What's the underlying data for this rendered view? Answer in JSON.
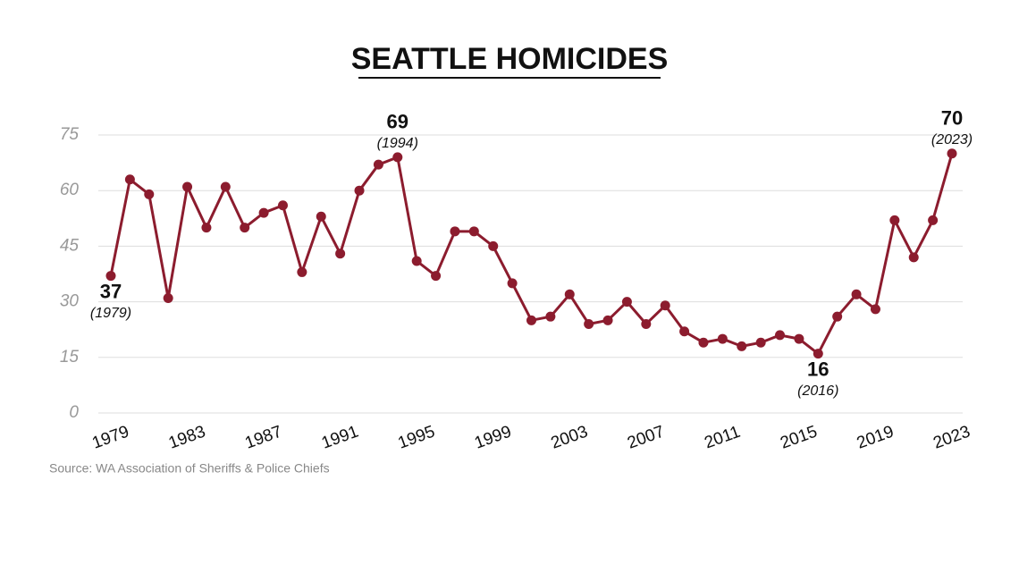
{
  "chart_data": {
    "type": "line",
    "title": "SEATTLE HOMICIDES",
    "source": "Source: WA Association of Sheriffs & Police Chiefs",
    "x": [
      1979,
      1980,
      1981,
      1982,
      1983,
      1984,
      1985,
      1986,
      1987,
      1988,
      1989,
      1990,
      1991,
      1992,
      1993,
      1994,
      1995,
      1996,
      1997,
      1998,
      1999,
      2000,
      2001,
      2002,
      2003,
      2004,
      2005,
      2006,
      2007,
      2008,
      2009,
      2010,
      2011,
      2012,
      2013,
      2014,
      2015,
      2016,
      2017,
      2018,
      2019,
      2020,
      2021,
      2022,
      2023
    ],
    "series": [
      {
        "name": "Homicides",
        "color": "#8c1c2e",
        "values": [
          37,
          63,
          59,
          31,
          61,
          50,
          61,
          50,
          54,
          56,
          38,
          53,
          43,
          60,
          67,
          69,
          41,
          37,
          49,
          49,
          45,
          35,
          25,
          26,
          32,
          24,
          25,
          30,
          24,
          29,
          22,
          19,
          20,
          18,
          19,
          21,
          20,
          16,
          26,
          32,
          28,
          52,
          42,
          52,
          70
        ]
      }
    ],
    "xlim": [
      1979,
      2023
    ],
    "xticks": [
      1979,
      1983,
      1987,
      1991,
      1995,
      1999,
      2003,
      2007,
      2011,
      2015,
      2019,
      2023
    ],
    "ylim": [
      0,
      75
    ],
    "yticks": [
      0,
      15,
      30,
      45,
      60,
      75
    ],
    "grid": true,
    "annotations": [
      {
        "x": 1979,
        "label": "(1979)",
        "position": "below"
      },
      {
        "x": 1994,
        "label": "(1994)",
        "position": "above"
      },
      {
        "x": 2016,
        "label": "(2016)",
        "position": "below"
      },
      {
        "x": 2023,
        "label": "(2023)",
        "position": "above"
      }
    ]
  }
}
